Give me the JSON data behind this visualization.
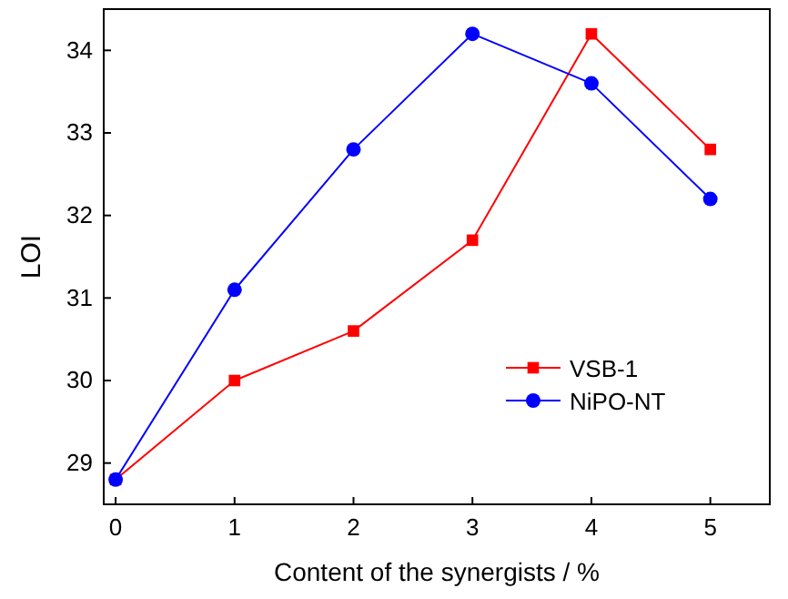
{
  "chart_data": {
    "type": "line",
    "xlabel": "Content of the synergists / %",
    "ylabel": "LOI",
    "x": [
      0,
      1,
      2,
      3,
      4,
      5
    ],
    "series": [
      {
        "name": "VSB-1",
        "color": "#ff0000",
        "marker": "square",
        "values": [
          28.8,
          30.0,
          30.6,
          31.7,
          34.2,
          32.8
        ]
      },
      {
        "name": "NiPO-NT",
        "color": "#0000ff",
        "marker": "circle",
        "values": [
          28.8,
          31.1,
          32.8,
          34.2,
          33.6,
          32.2
        ]
      }
    ],
    "xlim": [
      -0.1,
      5.5
    ],
    "xticks": [
      0,
      1,
      2,
      3,
      4,
      5
    ],
    "ylim": [
      28.5,
      34.5
    ],
    "yticks": [
      29,
      30,
      31,
      32,
      33,
      34
    ],
    "grid": false,
    "legend": "bottom right",
    "line_style": "solid"
  }
}
